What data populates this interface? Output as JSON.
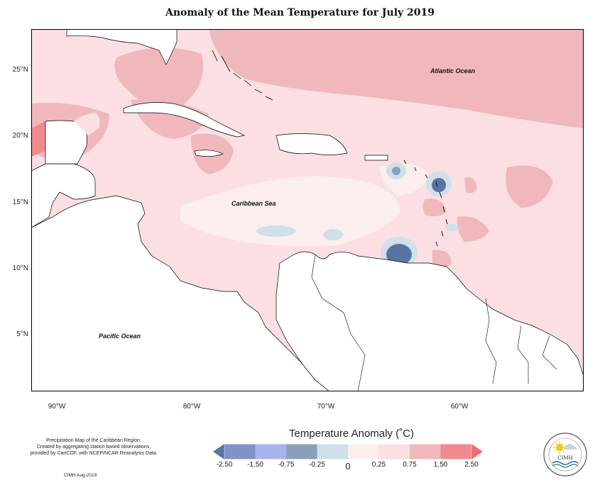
{
  "title": "Anomaly of the Mean Temperature for July 2019",
  "map": {
    "labels": {
      "atlantic": "Atlantic Ocean",
      "caribbean": "Caribbean Sea",
      "pacific": "Pacific Ocean"
    },
    "lat_ticks": [
      "25°N",
      "20°N",
      "15°N",
      "10°N",
      "5°N"
    ],
    "lon_ticks": [
      "90°W",
      "80°W",
      "70°W",
      "60°W"
    ],
    "colors": {
      "land": "#ffffff",
      "anom_neg_2_50": "#5874a4",
      "anom_neg_1_50": "#7f93c8",
      "anom_neg_0_75": "#a7b4f0",
      "anom_neg_0_25": "#cfe0e8",
      "anom_0_00": "#fdeeee",
      "anom_0_25": "#fbdfe2",
      "anom_0_75": "#f0b8bc",
      "anom_1_50": "#f08a8e",
      "anom_2_50": "#f06c74"
    }
  },
  "legend": {
    "title": "Temperature Anomaly (˚C)",
    "ticks": [
      "-2.50",
      "-1.50",
      "-0.75",
      "-0.25",
      "0",
      "0.25",
      "0.75",
      "1.50",
      "2.50"
    ],
    "colors": [
      "#5874a4",
      "#7f93c8",
      "#a7b4f0",
      "#8aa0b8",
      "#cfe0e8",
      "#fdeeee",
      "#fbdfe2",
      "#f0b8bc",
      "#f08a8e",
      "#f06c74"
    ]
  },
  "credit": {
    "line1": "Precipitation Map of the Caribbean Region.",
    "line2": "Created by aggregating station based observations,",
    "line3": "provided by CariCOF, with NCEP/NCAR Reanalysis Data.",
    "line4": "CIMH Aug-2019"
  },
  "logo": {
    "text": "CIMH"
  }
}
